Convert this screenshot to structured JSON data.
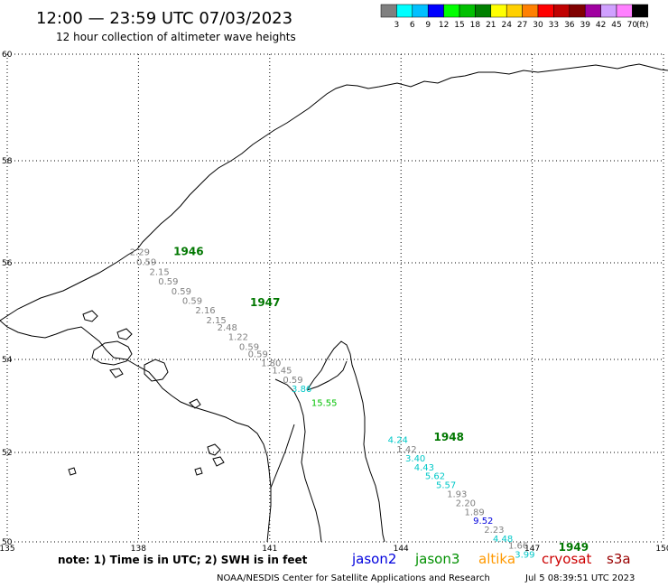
{
  "header": {
    "title": "12:00 — 23:59 UTC 07/03/2023",
    "subtitle": "12 hour collection of altimeter wave heights"
  },
  "colorbar": {
    "unit": "(ft)",
    "bins": [
      {
        "color": "#808080",
        "label": "3"
      },
      {
        "color": "#00ffff",
        "label": "6"
      },
      {
        "color": "#00c0ff",
        "label": "9"
      },
      {
        "color": "#0000ff",
        "label": "12"
      },
      {
        "color": "#00ff00",
        "label": "15"
      },
      {
        "color": "#00c000",
        "label": "18"
      },
      {
        "color": "#008000",
        "label": "21"
      },
      {
        "color": "#ffff00",
        "label": "24"
      },
      {
        "color": "#ffd000",
        "label": "27"
      },
      {
        "color": "#ff8000",
        "label": "30"
      },
      {
        "color": "#ff0000",
        "label": "33"
      },
      {
        "color": "#c00000",
        "label": "36"
      },
      {
        "color": "#800000",
        "label": "39"
      },
      {
        "color": "#a000a0",
        "label": "42"
      },
      {
        "color": "#d0a0ff",
        "label": "45"
      },
      {
        "color": "#ff80ff",
        "label": "70"
      },
      {
        "color": "#000000",
        "label": ""
      }
    ]
  },
  "map": {
    "lon_range": [
      135,
      150
    ],
    "lat_range": [
      50,
      60
    ],
    "lon_ticks": [
      135,
      138,
      141,
      144,
      147,
      150
    ],
    "lat_ticks": [
      50,
      52,
      54,
      56,
      58,
      60
    ],
    "lon_labels": [
      "135",
      "138",
      "141",
      "144",
      "147",
      "150"
    ],
    "lat_labels": [
      "50",
      "52",
      "54",
      "56",
      "58",
      "60"
    ],
    "coast_color": "#000000",
    "grid_style": "dotted"
  },
  "observations": [
    {
      "lon": 137.8,
      "lat": 56.15,
      "value": "2.29",
      "color": "#808080"
    },
    {
      "lon": 137.95,
      "lat": 55.95,
      "value": "0.59",
      "color": "#808080"
    },
    {
      "lon": 138.25,
      "lat": 55.75,
      "value": "2.15",
      "color": "#808080"
    },
    {
      "lon": 138.45,
      "lat": 55.55,
      "value": "0.59",
      "color": "#808080"
    },
    {
      "lon": 138.75,
      "lat": 55.35,
      "value": "0.59",
      "color": "#808080"
    },
    {
      "lon": 139.0,
      "lat": 55.15,
      "value": "0.59",
      "color": "#808080"
    },
    {
      "lon": 139.3,
      "lat": 54.95,
      "value": "2.16",
      "color": "#808080"
    },
    {
      "lon": 139.55,
      "lat": 54.75,
      "value": "2.15",
      "color": "#808080"
    },
    {
      "lon": 139.8,
      "lat": 54.6,
      "value": "2.48",
      "color": "#808080"
    },
    {
      "lon": 140.05,
      "lat": 54.4,
      "value": "1.22",
      "color": "#808080"
    },
    {
      "lon": 140.3,
      "lat": 54.2,
      "value": "0.59",
      "color": "#808080"
    },
    {
      "lon": 140.5,
      "lat": 54.05,
      "value": "0.59",
      "color": "#808080"
    },
    {
      "lon": 140.8,
      "lat": 53.85,
      "value": "1.80",
      "color": "#808080"
    },
    {
      "lon": 141.05,
      "lat": 53.7,
      "value": "1.45",
      "color": "#808080"
    },
    {
      "lon": 141.3,
      "lat": 53.5,
      "value": "0.59",
      "color": "#808080"
    },
    {
      "lon": 141.5,
      "lat": 53.3,
      "value": "3.86",
      "color": "#00c8c8"
    },
    {
      "lon": 141.95,
      "lat": 53.0,
      "value": "15.55",
      "color": "#00c000"
    },
    {
      "lon": 143.7,
      "lat": 52.2,
      "value": "4.24",
      "color": "#00c8c8"
    },
    {
      "lon": 143.9,
      "lat": 52.0,
      "value": "1.42",
      "color": "#808080"
    },
    {
      "lon": 144.1,
      "lat": 51.8,
      "value": "3.40",
      "color": "#00c8c8"
    },
    {
      "lon": 144.3,
      "lat": 51.6,
      "value": "4.43",
      "color": "#00c8c8"
    },
    {
      "lon": 144.55,
      "lat": 51.4,
      "value": "5.62",
      "color": "#00c8c8"
    },
    {
      "lon": 144.8,
      "lat": 51.2,
      "value": "5.57",
      "color": "#00c8c8"
    },
    {
      "lon": 145.05,
      "lat": 51.0,
      "value": "1.93",
      "color": "#808080"
    },
    {
      "lon": 145.25,
      "lat": 50.8,
      "value": "2.20",
      "color": "#808080"
    },
    {
      "lon": 145.45,
      "lat": 50.6,
      "value": "1.89",
      "color": "#808080"
    },
    {
      "lon": 145.65,
      "lat": 50.4,
      "value": "9.52",
      "color": "#0000dd"
    },
    {
      "lon": 145.9,
      "lat": 50.2,
      "value": "2.23",
      "color": "#808080"
    },
    {
      "lon": 146.1,
      "lat": 50.0,
      "value": "4.48",
      "color": "#00c8c8"
    },
    {
      "lon": 146.45,
      "lat": 49.85,
      "value": "1.66",
      "color": "#808080"
    },
    {
      "lon": 146.6,
      "lat": 49.65,
      "value": "3.99",
      "color": "#00c8c8"
    }
  ],
  "hour_labels": [
    {
      "lon": 138.8,
      "lat": 56.15,
      "text": "1946"
    },
    {
      "lon": 140.55,
      "lat": 55.1,
      "text": "1947"
    },
    {
      "lon": 144.75,
      "lat": 52.25,
      "text": "1948"
    },
    {
      "lon": 147.6,
      "lat": 49.8,
      "text": "1949"
    }
  ],
  "footer": {
    "note": "note:  1) Time is in UTC;  2) SWH is in feet",
    "satellites": [
      {
        "name": "jason2",
        "color": "#0000dd"
      },
      {
        "name": "jason3",
        "color": "#009000"
      },
      {
        "name": "altika",
        "color": "#ff9900"
      },
      {
        "name": "cryosat",
        "color": "#cc0000"
      },
      {
        "name": "s3a",
        "color": "#990000"
      }
    ],
    "credit": "NOAA/NESDIS Center for Satellite Applications and Research",
    "timestamp": "Jul  5 08:39:51 UTC 2023"
  }
}
